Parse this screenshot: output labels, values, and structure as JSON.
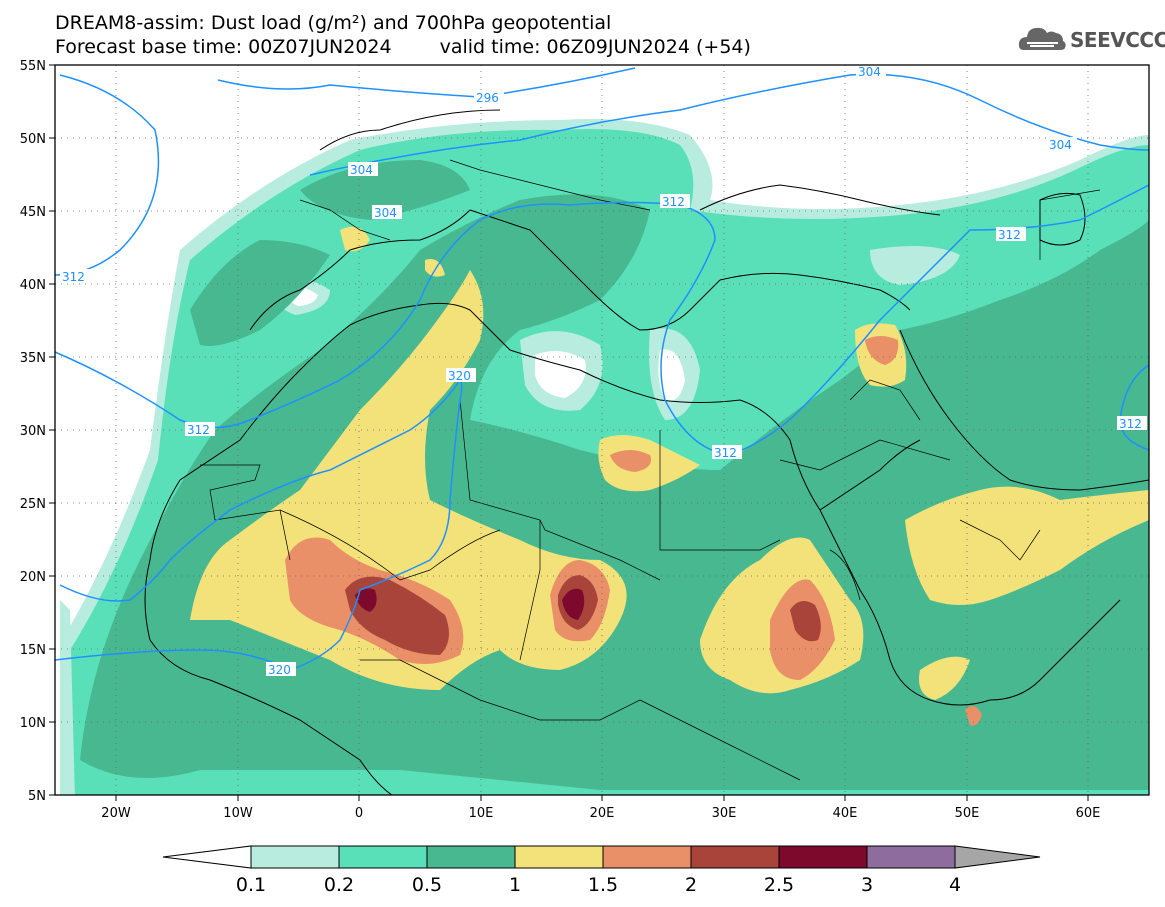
{
  "header": {
    "title_line1": "DREAM8-assim: Dust load (g/m²) and 700hPa geopotential",
    "base_label": "Forecast base time: 00Z07JUN2024",
    "valid_label": "valid time: 06Z09JUN2024 (+54)"
  },
  "logo": {
    "text": "SEEVCCC",
    "icon": "cloud-logo-icon"
  },
  "map": {
    "lon_ticks": [
      "20W",
      "10W",
      "0",
      "10E",
      "20E",
      "30E",
      "40E",
      "50E",
      "60E"
    ],
    "lat_ticks": [
      "55N",
      "50N",
      "45N",
      "40N",
      "35N",
      "30N",
      "25N",
      "20N",
      "15N",
      "10N",
      "5N"
    ],
    "contour_labels": [
      "296",
      "304",
      "304",
      "304",
      "304",
      "312",
      "312",
      "312",
      "312",
      "312",
      "312",
      "320",
      "320"
    ]
  },
  "colorbar": {
    "labels": [
      "0.1",
      "0.2",
      "0.5",
      "1",
      "1.5",
      "2",
      "2.5",
      "3",
      "4"
    ],
    "colors": [
      "#ffffff",
      "#b8ecdf",
      "#5ae0b8",
      "#48b891",
      "#f3e27a",
      "#ea9068",
      "#a9443b",
      "#7d0a2c",
      "#8e6c9d",
      "#a6a6a6"
    ]
  },
  "colors": {
    "c1": "#b8ecdf",
    "c2": "#5ae0b8",
    "c3": "#48b891",
    "c4": "#f3e27a",
    "c5": "#ea9068",
    "c6": "#a9443b",
    "c7": "#7d0a2c",
    "contour": "#1e90ff"
  }
}
